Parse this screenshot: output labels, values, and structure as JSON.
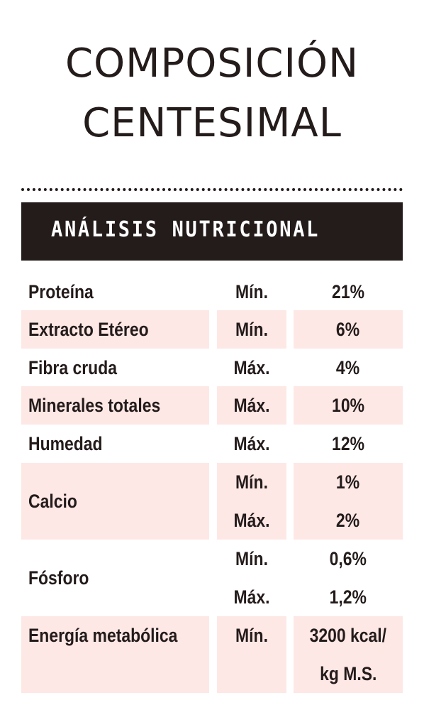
{
  "title": {
    "line1": "COMPOSICIÓN",
    "line2": "CENTESIMAL"
  },
  "section": {
    "heading": "ANÁLISIS NUTRICIONAL"
  },
  "rows": [
    {
      "name": "Proteína",
      "limit": "Mín.",
      "value": "21%"
    },
    {
      "name": "Extracto Etéreo",
      "limit": "Mín.",
      "value": "6%"
    },
    {
      "name": "Fibra cruda",
      "limit": "Máx.",
      "value": "4%"
    },
    {
      "name": "Minerales totales",
      "limit": "Máx.",
      "value": "10%"
    },
    {
      "name": "Humedad",
      "limit": "Máx.",
      "value": "12%"
    },
    {
      "name": "Calcio",
      "limit_1": "Mín.",
      "value_1": "1%",
      "limit_2": "Máx.",
      "value_2": "2%"
    },
    {
      "name": "Fósforo",
      "limit_1": "Mín.",
      "value_1": "0,6%",
      "limit_2": "Máx.",
      "value_2": "1,2%"
    },
    {
      "name": "Energía metabólica",
      "limit": "Mín.",
      "value_line1": "3200 kcal/",
      "value_line2": "kg M.S."
    }
  ],
  "colors": {
    "dark": "#241b1b",
    "shade": "#fde8e5"
  }
}
